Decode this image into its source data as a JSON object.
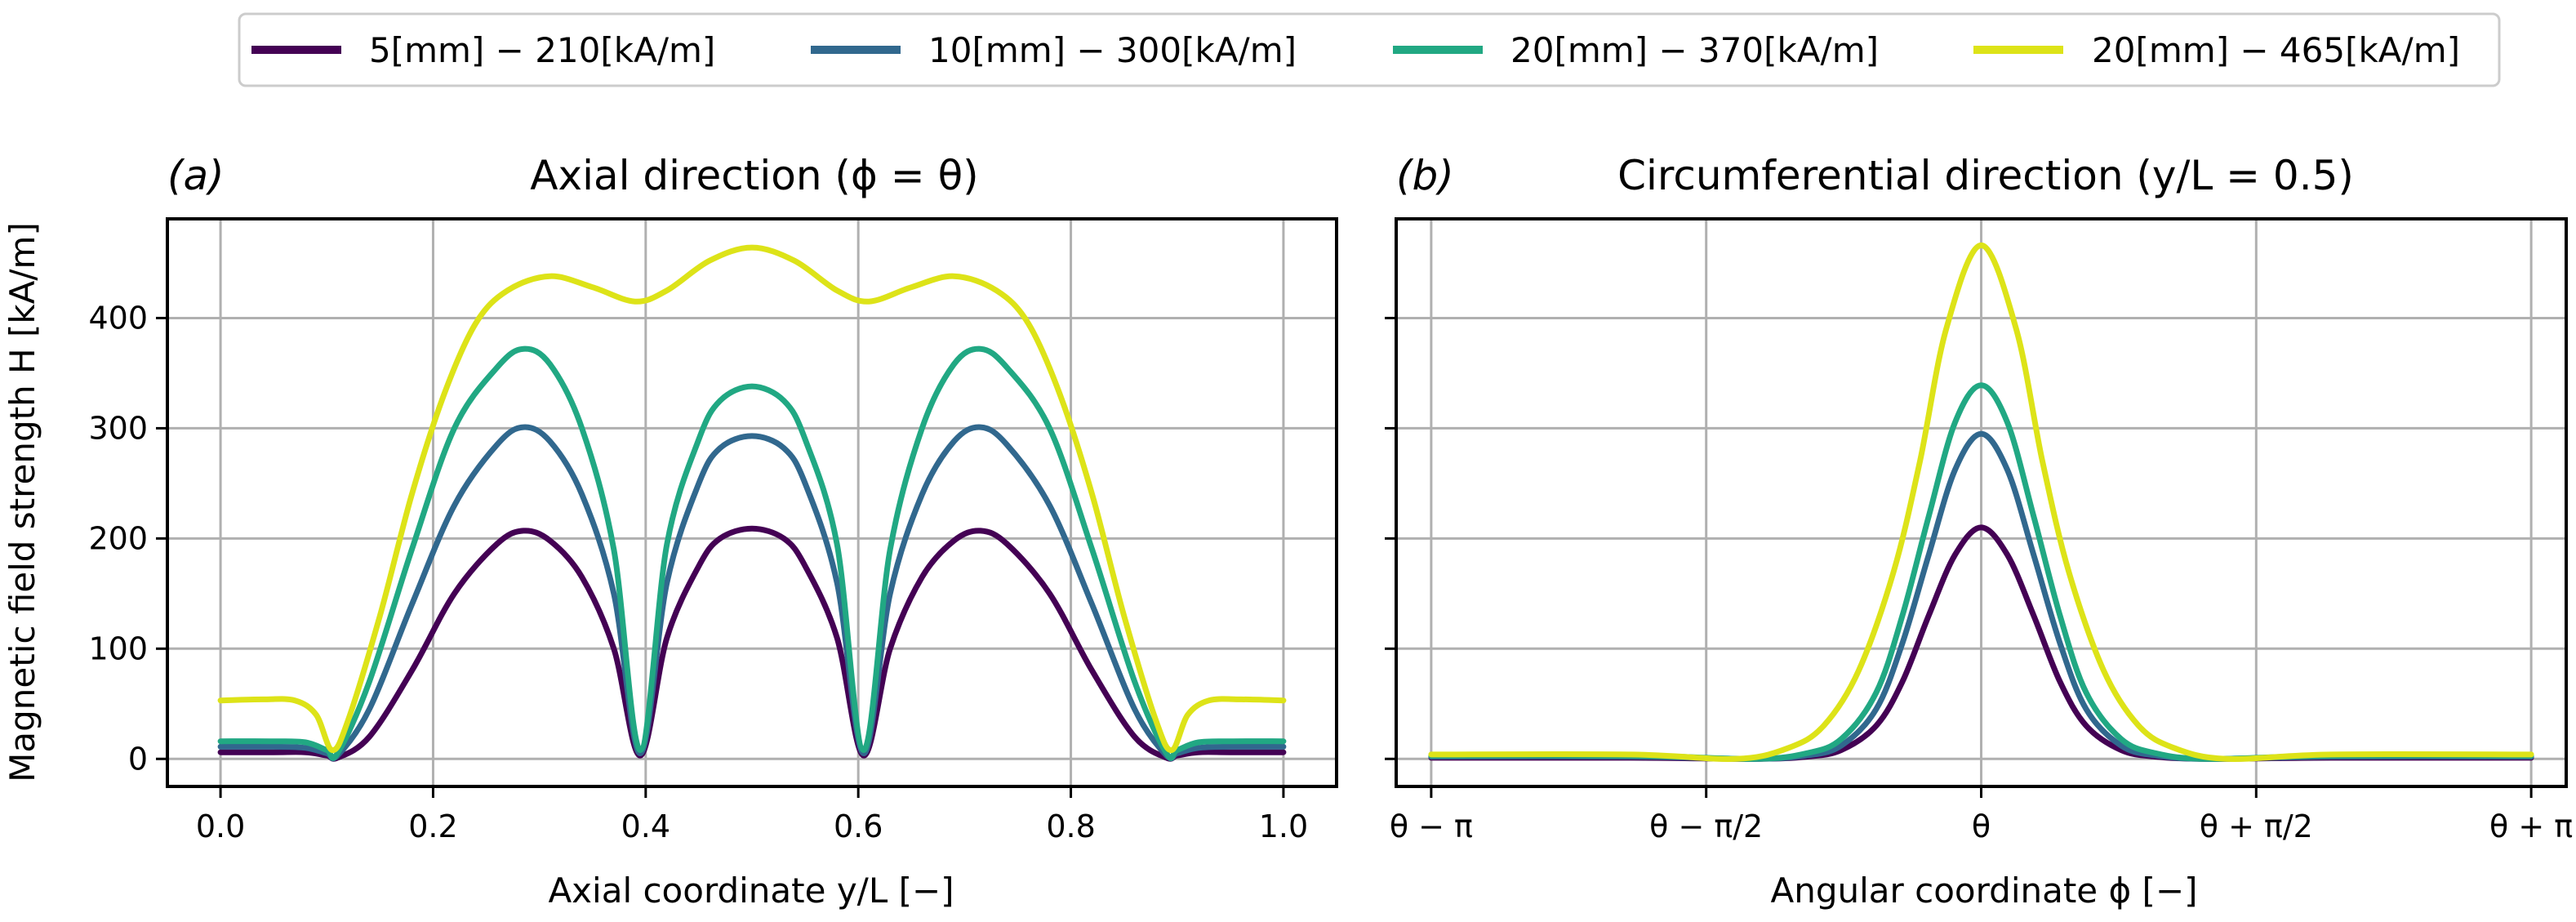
{
  "legend": {
    "entries": [
      {
        "label": "5[mm] − 210[kA/m]",
        "color": "#440154"
      },
      {
        "label": "10[mm] − 300[kA/m]",
        "color": "#31688e"
      },
      {
        "label": "20[mm] − 370[kA/m]",
        "color": "#21a883"
      },
      {
        "label": "20[mm] − 465[kA/m]",
        "color": "#dde318"
      }
    ]
  },
  "chart_data": [
    {
      "type": "line",
      "panel_label": "(a)",
      "title": "Axial direction (ϕ = θ)",
      "xlabel": "Axial coordinate y/L [−]",
      "ylabel": "Magnetic field strength H [kA/m]",
      "xlim": [
        -0.05,
        1.05
      ],
      "ylim": [
        -25,
        490
      ],
      "x_ticks": [
        0.0,
        0.2,
        0.4,
        0.6,
        0.8,
        1.0
      ],
      "x_tick_labels": [
        "0.0",
        "0.2",
        "0.4",
        "0.6",
        "0.8",
        "1.0"
      ],
      "y_ticks": [
        0,
        100,
        200,
        300,
        400
      ],
      "y_tick_labels": [
        "0",
        "100",
        "200",
        "300",
        "400"
      ],
      "grid": true,
      "series": [
        {
          "name": "5[mm] − 210[kA/m]",
          "color": "#440154",
          "x": [
            0.0,
            0.05,
            0.08,
            0.1,
            0.11,
            0.14,
            0.18,
            0.22,
            0.26,
            0.285,
            0.31,
            0.34,
            0.37,
            0.395,
            0.42,
            0.45,
            0.47,
            0.5,
            0.53,
            0.55,
            0.58,
            0.605,
            0.63,
            0.66,
            0.69,
            0.715,
            0.74,
            0.78,
            0.82,
            0.86,
            0.89,
            0.9,
            0.92,
            0.95,
            1.0
          ],
          "y": [
            6,
            6,
            6,
            3,
            1,
            20,
            80,
            150,
            195,
            207,
            198,
            165,
            100,
            3,
            110,
            175,
            200,
            209,
            200,
            175,
            110,
            3,
            100,
            165,
            198,
            207,
            195,
            150,
            80,
            20,
            1,
            3,
            6,
            6,
            6
          ]
        },
        {
          "name": "10[mm] − 300[kA/m]",
          "color": "#31688e",
          "x": [
            0.0,
            0.05,
            0.08,
            0.1,
            0.11,
            0.14,
            0.18,
            0.22,
            0.26,
            0.285,
            0.31,
            0.34,
            0.37,
            0.395,
            0.42,
            0.45,
            0.47,
            0.5,
            0.53,
            0.55,
            0.58,
            0.605,
            0.63,
            0.66,
            0.69,
            0.715,
            0.74,
            0.78,
            0.82,
            0.86,
            0.89,
            0.9,
            0.92,
            0.95,
            1.0
          ],
          "y": [
            11,
            11,
            10,
            5,
            3,
            45,
            140,
            230,
            285,
            301,
            288,
            240,
            150,
            5,
            160,
            250,
            282,
            293,
            282,
            250,
            160,
            5,
            150,
            240,
            288,
            301,
            285,
            230,
            140,
            45,
            3,
            5,
            10,
            11,
            11
          ]
        },
        {
          "name": "20[mm] − 370[kA/m]",
          "color": "#21a883",
          "x": [
            0.0,
            0.05,
            0.08,
            0.1,
            0.11,
            0.14,
            0.18,
            0.22,
            0.26,
            0.285,
            0.31,
            0.34,
            0.37,
            0.395,
            0.42,
            0.45,
            0.47,
            0.5,
            0.53,
            0.55,
            0.58,
            0.605,
            0.63,
            0.66,
            0.69,
            0.715,
            0.74,
            0.78,
            0.82,
            0.86,
            0.89,
            0.9,
            0.92,
            0.95,
            1.0
          ],
          "y": [
            16,
            16,
            15,
            8,
            5,
            70,
            190,
            300,
            355,
            372,
            358,
            300,
            190,
            8,
            195,
            290,
            325,
            338,
            325,
            290,
            195,
            8,
            190,
            300,
            358,
            372,
            355,
            300,
            190,
            70,
            5,
            8,
            15,
            16,
            16
          ]
        },
        {
          "name": "20[mm] − 465[kA/m]",
          "color": "#dde318",
          "x": [
            0.0,
            0.04,
            0.07,
            0.09,
            0.105,
            0.12,
            0.15,
            0.18,
            0.21,
            0.24,
            0.27,
            0.31,
            0.35,
            0.39,
            0.42,
            0.46,
            0.5,
            0.54,
            0.58,
            0.61,
            0.65,
            0.69,
            0.73,
            0.76,
            0.79,
            0.82,
            0.85,
            0.88,
            0.895,
            0.91,
            0.93,
            0.96,
            1.0
          ],
          "y": [
            53,
            54,
            53,
            40,
            8,
            35,
            130,
            240,
            330,
            395,
            425,
            438,
            428,
            415,
            425,
            452,
            464,
            452,
            425,
            415,
            428,
            438,
            425,
            395,
            330,
            240,
            130,
            35,
            8,
            40,
            53,
            54,
            53
          ]
        }
      ]
    },
    {
      "type": "line",
      "panel_label": "(b)",
      "title": "Circumferential direction (y/L = 0.5)",
      "xlabel": "Angular coordinate ϕ [−]",
      "ylabel": "",
      "xlim": [
        -3.3416,
        3.3416
      ],
      "ylim": [
        -25,
        490
      ],
      "x_ticks": [
        -3.14159,
        -1.5708,
        0,
        1.5708,
        3.14159
      ],
      "x_tick_labels": [
        "θ − π",
        "θ − π/2",
        "θ",
        "θ + π/2",
        "θ + π"
      ],
      "y_ticks": [
        0,
        100,
        200,
        300,
        400
      ],
      "grid": true,
      "series": [
        {
          "name": "5[mm] − 210[kA/m]",
          "color": "#440154",
          "x": [
            -3.1416,
            -2.0,
            -1.3,
            -1.0,
            -0.8,
            -0.6,
            -0.45,
            -0.3,
            -0.15,
            0.0,
            0.15,
            0.3,
            0.45,
            0.6,
            0.8,
            1.0,
            1.3,
            2.0,
            3.1416
          ],
          "y": [
            1,
            1,
            0,
            2,
            8,
            30,
            70,
            130,
            185,
            210,
            185,
            130,
            70,
            30,
            8,
            2,
            0,
            1,
            1
          ]
        },
        {
          "name": "10[mm] − 300[kA/m]",
          "color": "#31688e",
          "x": [
            -3.1416,
            -2.0,
            -1.3,
            -1.0,
            -0.8,
            -0.6,
            -0.45,
            -0.3,
            -0.15,
            0.0,
            0.15,
            0.3,
            0.45,
            0.6,
            0.8,
            1.0,
            1.3,
            2.0,
            3.1416
          ],
          "y": [
            2,
            2,
            0,
            3,
            12,
            45,
            105,
            185,
            262,
            295,
            262,
            185,
            105,
            45,
            12,
            3,
            0,
            2,
            2
          ]
        },
        {
          "name": "20[mm] − 370[kA/m]",
          "color": "#21a883",
          "x": [
            -3.1416,
            -2.0,
            -1.3,
            -1.0,
            -0.8,
            -0.6,
            -0.45,
            -0.3,
            -0.15,
            0.0,
            0.15,
            0.3,
            0.45,
            0.6,
            0.8,
            1.0,
            1.3,
            2.0,
            3.1416
          ],
          "y": [
            3,
            3,
            0,
            5,
            18,
            60,
            130,
            220,
            305,
            339,
            305,
            220,
            130,
            60,
            18,
            5,
            0,
            3,
            3
          ]
        },
        {
          "name": "20[mm] − 465[kA/m]",
          "color": "#dde318",
          "x": [
            -3.1416,
            -2.0,
            -1.4,
            -1.1,
            -0.9,
            -0.7,
            -0.5,
            -0.35,
            -0.2,
            0.0,
            0.2,
            0.35,
            0.5,
            0.7,
            0.9,
            1.1,
            1.4,
            2.0,
            3.1416
          ],
          "y": [
            4,
            4,
            0,
            10,
            30,
            80,
            170,
            270,
            390,
            466,
            390,
            270,
            170,
            80,
            30,
            10,
            0,
            4,
            4
          ]
        }
      ]
    }
  ]
}
